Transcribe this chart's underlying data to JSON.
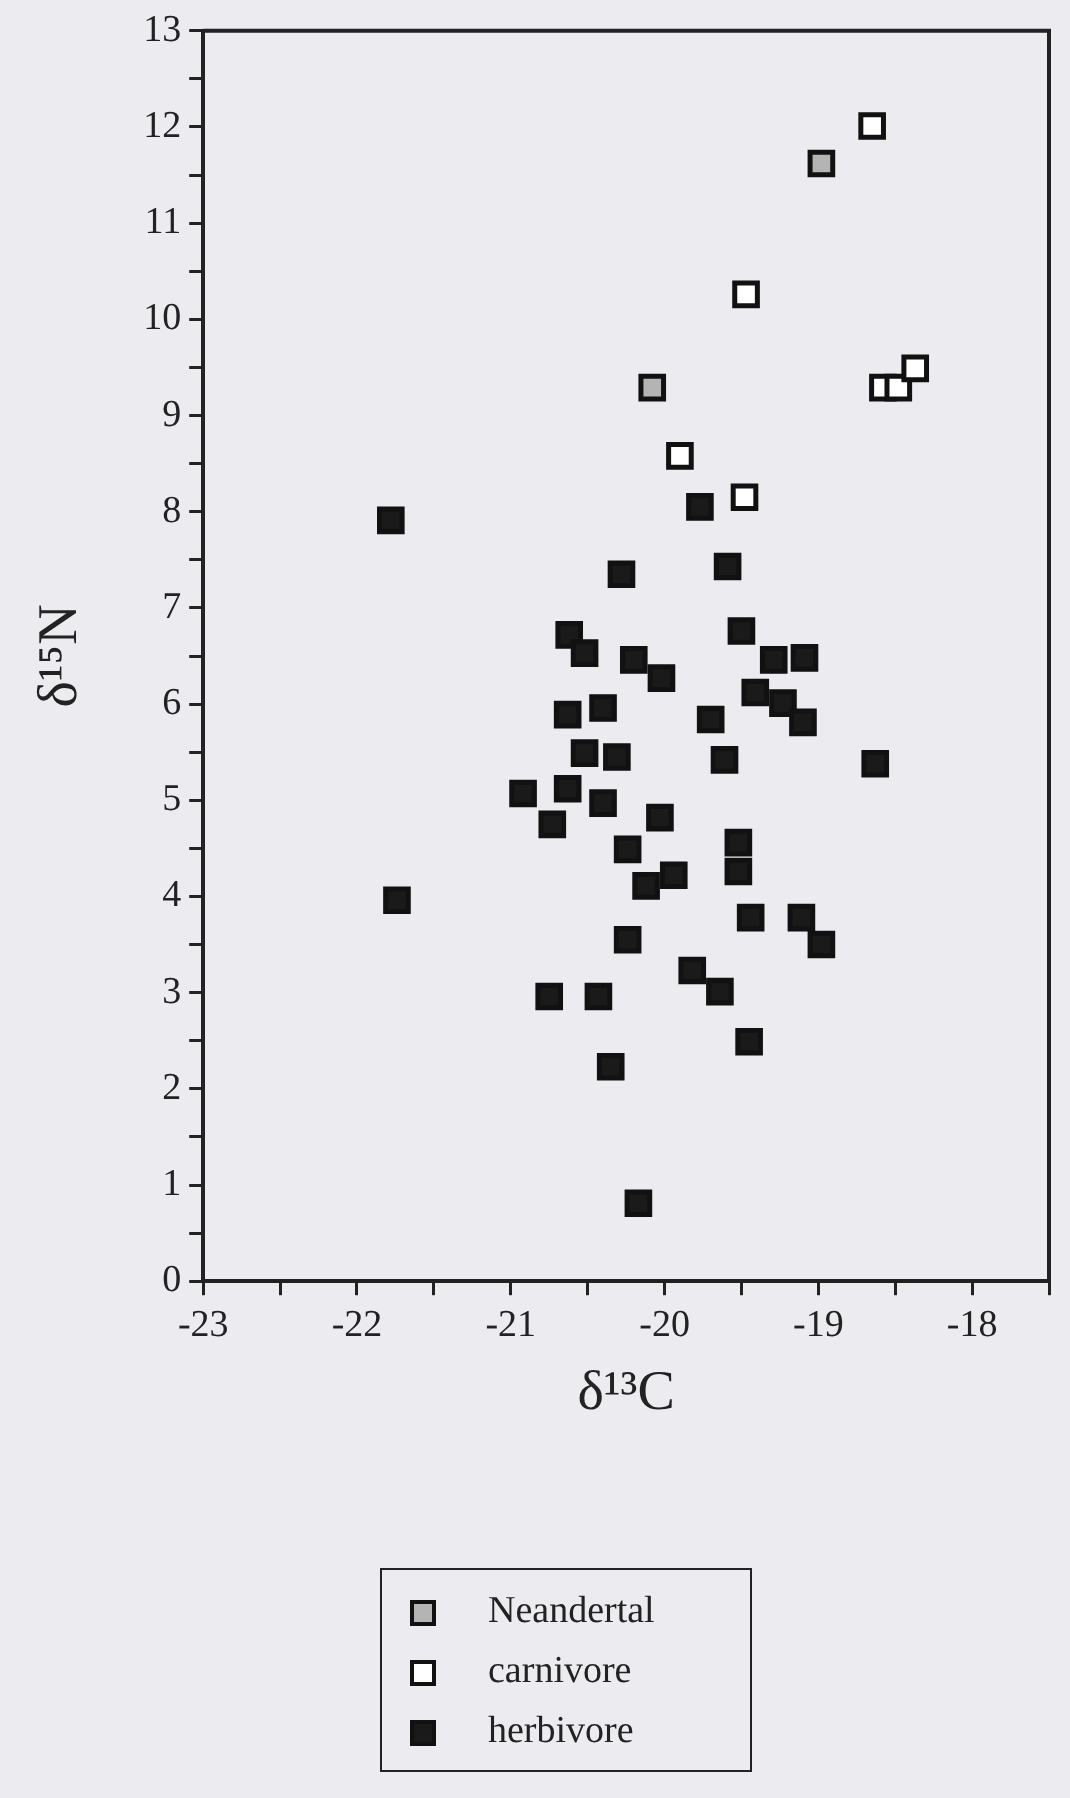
{
  "chart_data": {
    "type": "scatter",
    "xlabel": "δ¹³C",
    "ylabel": "δ¹⁵N",
    "marker": "square",
    "legend": "bottom",
    "xlim": [
      -23,
      -17.5
    ],
    "xticks": [
      -23,
      {
        "value": -22.5,
        "label": null
      },
      -22,
      {
        "value": -21.5,
        "label": null
      },
      -21,
      {
        "value": -20.5,
        "label": null
      },
      -20,
      {
        "value": -19.5,
        "label": null
      },
      -19,
      {
        "value": -18.5,
        "label": null
      },
      -18,
      {
        "value": -17.5,
        "label": null
      }
    ],
    "ylim": [
      0,
      13
    ],
    "yticks": [
      0,
      {
        "value": 0.5,
        "label": null
      },
      1,
      {
        "value": 1.5,
        "label": null
      },
      2,
      {
        "value": 2.5,
        "label": null
      },
      3,
      {
        "value": 3.5,
        "label": null
      },
      4,
      {
        "value": 4.5,
        "label": null
      },
      5,
      {
        "value": 5.5,
        "label": null
      },
      6,
      {
        "value": 6.5,
        "label": null
      },
      7,
      {
        "value": 7.5,
        "label": null
      },
      8,
      {
        "value": 8.5,
        "label": null
      },
      9,
      {
        "value": 9.5,
        "label": null
      },
      10,
      {
        "value": 10.5,
        "label": null
      },
      11,
      {
        "value": 11.5,
        "label": null
      },
      12,
      {
        "value": 12.5,
        "label": null
      },
      13
    ],
    "series": [
      {
        "name": "Neandertal",
        "color": "#b4b4b4",
        "x": [
          -18.98,
          -20.08
        ],
        "values": [
          11.62,
          9.29
        ]
      },
      {
        "name": "carnivore",
        "color": "#ffffff",
        "x": [
          -18.65,
          -19.47,
          -18.58,
          -18.48,
          -18.37,
          -19.9,
          -19.48
        ],
        "values": [
          12.01,
          10.26,
          9.29,
          9.29,
          9.49,
          8.58,
          8.15
        ]
      },
      {
        "name": "herbivore",
        "color": "#1a1a1a",
        "x": [
          -21.78,
          -19.77,
          -20.28,
          -19.59,
          -20.62,
          -20.52,
          -20.2,
          -20.02,
          -19.5,
          -19.29,
          -19.09,
          -19.41,
          -19.23,
          -19.1,
          -20.63,
          -20.4,
          -19.7,
          -20.52,
          -20.31,
          -19.61,
          -18.63,
          -20.92,
          -20.63,
          -20.4,
          -20.73,
          -20.03,
          -20.24,
          -19.52,
          -19.52,
          -20.12,
          -19.94,
          -21.74,
          -19.44,
          -19.11,
          -18.98,
          -20.24,
          -19.82,
          -19.64,
          -20.75,
          -20.43,
          -19.45,
          -20.35,
          -20.17
        ],
        "values": [
          7.91,
          8.05,
          7.35,
          7.43,
          6.72,
          6.53,
          6.46,
          6.27,
          6.76,
          6.46,
          6.48,
          6.12,
          6.01,
          5.81,
          5.89,
          5.96,
          5.84,
          5.49,
          5.45,
          5.42,
          5.38,
          5.07,
          5.12,
          4.97,
          4.75,
          4.82,
          4.49,
          4.56,
          4.26,
          4.11,
          4.22,
          3.96,
          3.78,
          3.78,
          3.5,
          3.55,
          3.23,
          3.01,
          2.96,
          2.96,
          2.49,
          2.23,
          0.81
        ]
      }
    ]
  }
}
